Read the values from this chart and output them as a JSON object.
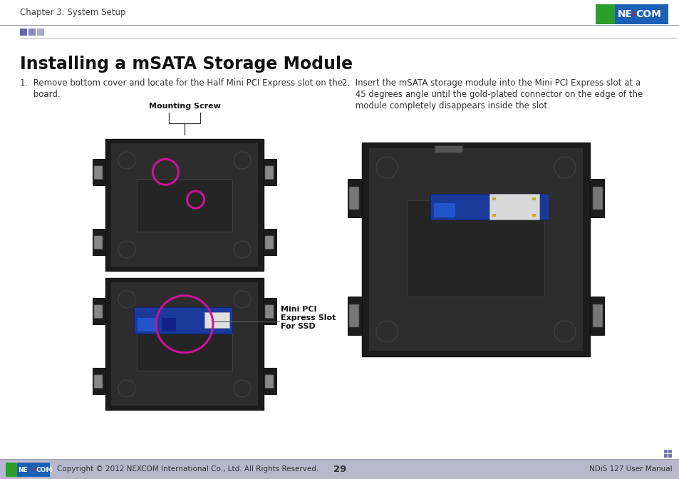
{
  "page_bg": "#ffffff",
  "header_text": "Chapter 3: System Setup",
  "header_text_color": "#444444",
  "header_text_size": 8.5,
  "logo_bg": "#1a5fb4",
  "logo_green": "#2a9d2a",
  "logo_red": "#cc1111",
  "divider_color": "#9090bb",
  "divider_squares": [
    "#6666aa",
    "#8888bb",
    "#aaaacc"
  ],
  "title": "Installing a mSATA Storage Module",
  "title_size": 17,
  "title_color": "#111111",
  "step1_line1": "1.  Remove bottom cover and locate for the Half Mini PCI Express slot on the",
  "step1_line2": "     board.",
  "step2_line1": "2.  Insert the mSATA storage module into the Mini PCI Express slot at a",
  "step2_line2": "     45 degrees angle until the gold-plated connector on the edge of the",
  "step2_line3": "     module completely disappears inside the slot.",
  "body_text_size": 8.5,
  "body_text_color": "#333333",
  "annotation1": "Mounting Screw",
  "annotation2_line1": "Mini PCI",
  "annotation2_line2": "Express Slot",
  "annotation2_line3": "For SSD",
  "annotation_size": 8,
  "footer_bg": "#b8b8cc",
  "footer_text_left": "Copyright © 2012 NEXCOM International Co., Ltd. All Rights Reserved.",
  "footer_text_center": "29",
  "footer_text_right": "NDiS 127 User Manual",
  "footer_text_size": 7.5,
  "footer_text_color": "#333333",
  "circle_color": "#cc1199",
  "circle_lw": 2.2,
  "img_dark": "#1c1c1c",
  "img_mid": "#2d2d2d",
  "img_light": "#3d3d3d"
}
